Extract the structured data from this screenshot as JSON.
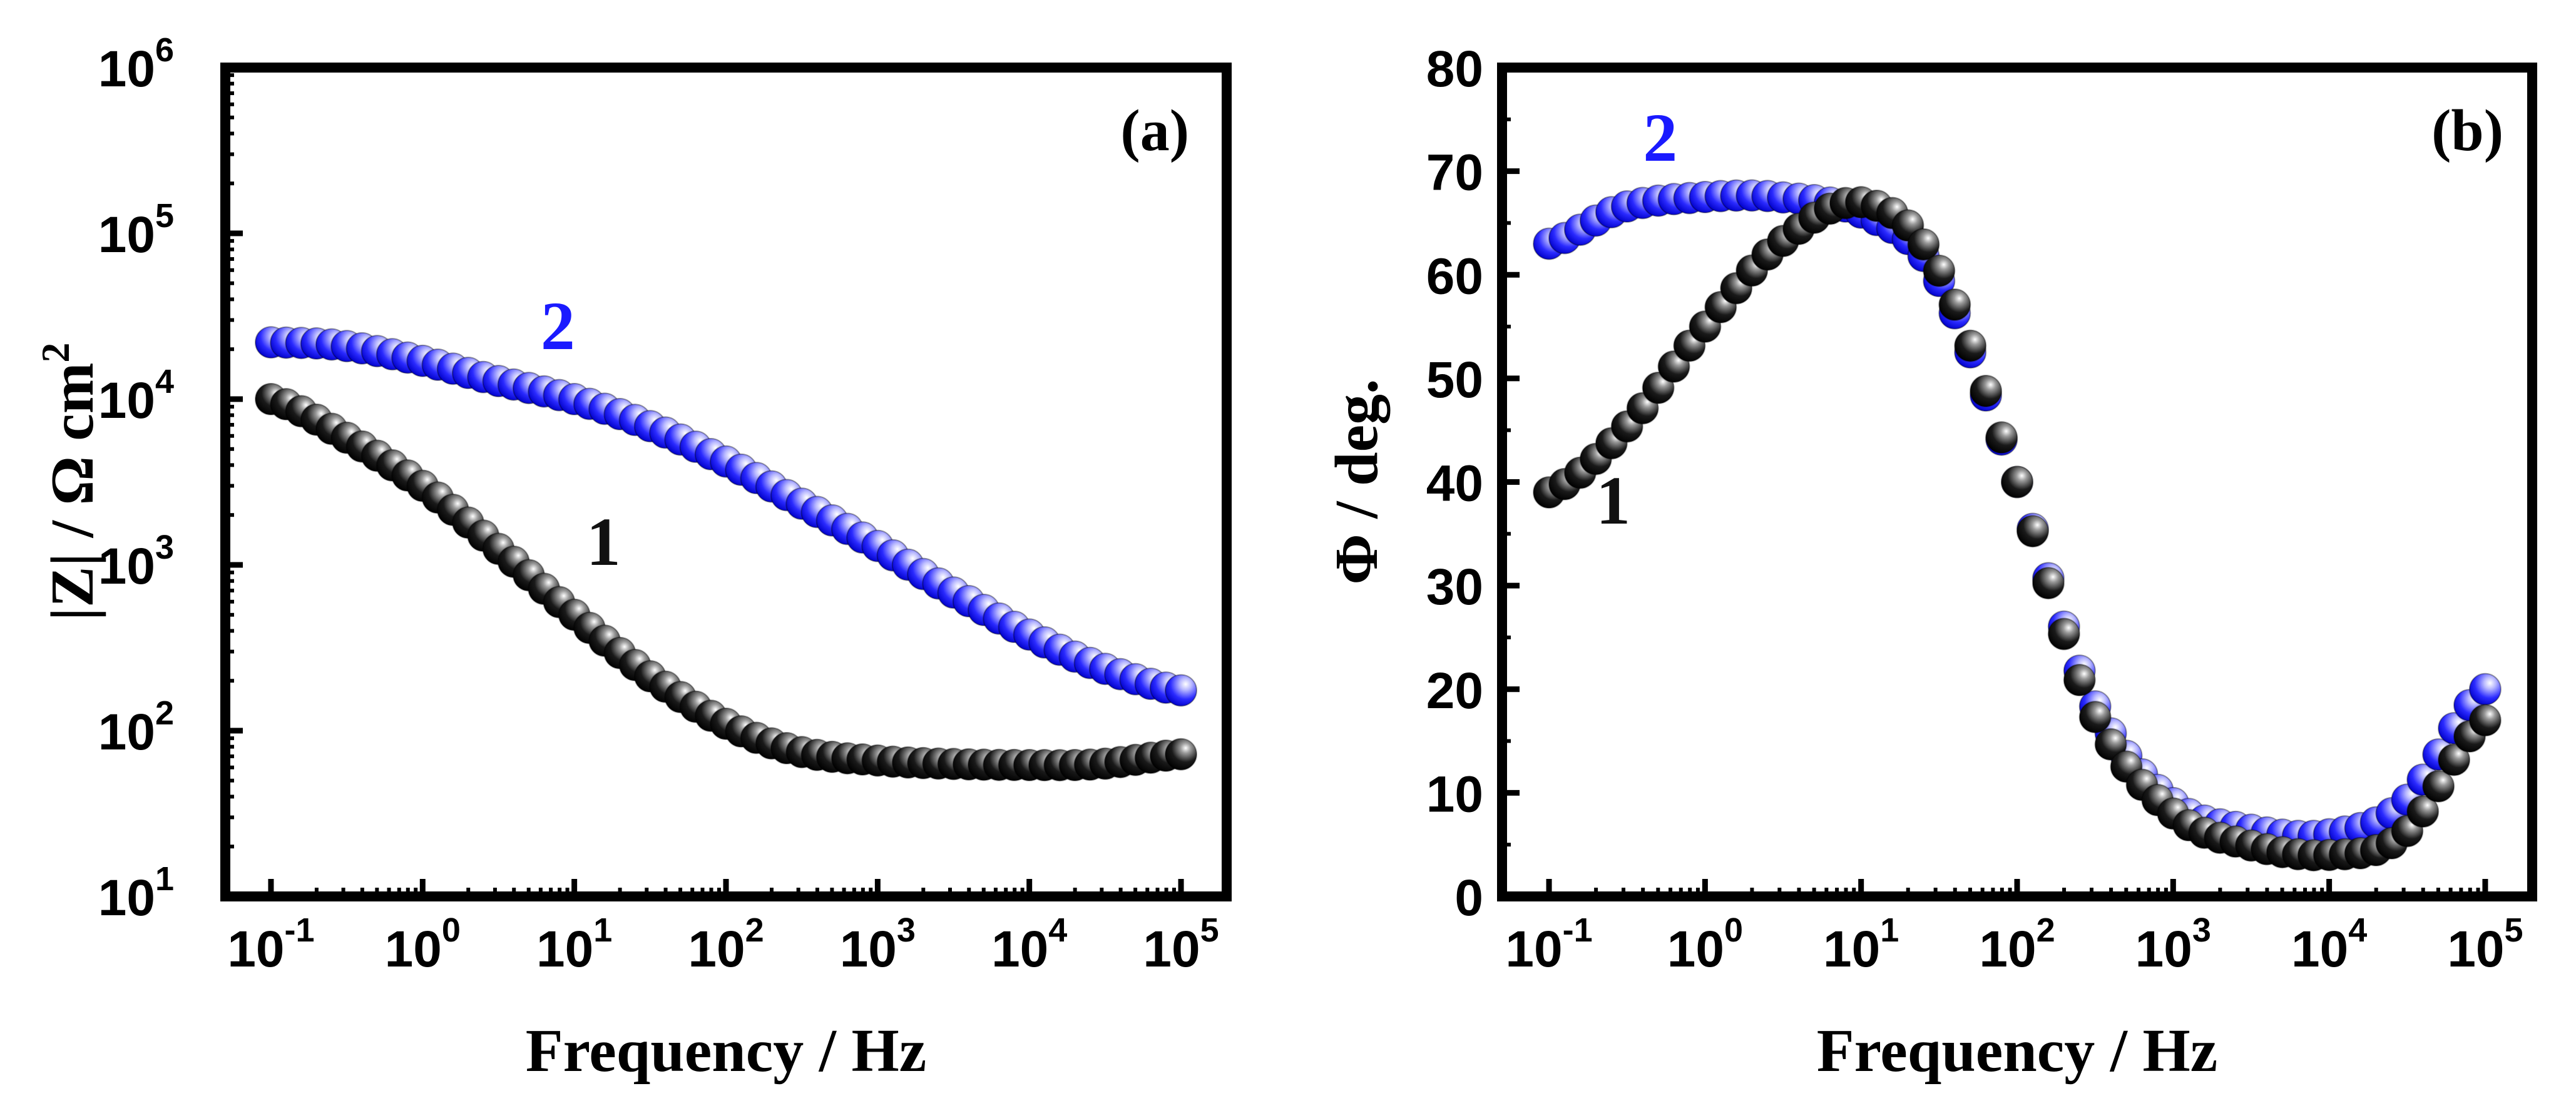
{
  "colors": {
    "series1": "#111111",
    "series2": "#1a1aff",
    "axis": "#000000"
  },
  "chart_data": [
    {
      "type": "scatter",
      "panel_label": "(a)",
      "xlabel": "Frequency / Hz",
      "ylabel": "|Z| / Ω cm",
      "ylabel_sup": "2",
      "xscale": "log",
      "yscale": "log",
      "xlim": [
        0.05,
        200000
      ],
      "ylim": [
        10,
        1000000
      ],
      "x_ticks": [
        {
          "base": "10",
          "exp": "-1"
        },
        {
          "base": "10",
          "exp": "0"
        },
        {
          "base": "10",
          "exp": "1"
        },
        {
          "base": "10",
          "exp": "2"
        },
        {
          "base": "10",
          "exp": "3"
        },
        {
          "base": "10",
          "exp": "4"
        },
        {
          "base": "10",
          "exp": "5"
        }
      ],
      "y_ticks": [
        {
          "base": "10",
          "exp": "1"
        },
        {
          "base": "10",
          "exp": "2"
        },
        {
          "base": "10",
          "exp": "3"
        },
        {
          "base": "10",
          "exp": "4"
        },
        {
          "base": "10",
          "exp": "5"
        },
        {
          "base": "10",
          "exp": "6"
        }
      ],
      "series": [
        {
          "name": "1",
          "label_x": 12,
          "label_y": 1000,
          "x": [
            0.1,
            0.3,
            1,
            3,
            10,
            30,
            100,
            300,
            1000,
            3000,
            10000,
            30000,
            100000
          ],
          "y": [
            10000,
            6000,
            3000,
            1300,
            500,
            220,
            110,
            75,
            66,
            63,
            62,
            63,
            72
          ]
        },
        {
          "name": "2",
          "label_x": 6,
          "label_y": 20000,
          "x": [
            0.1,
            0.3,
            1,
            3,
            10,
            30,
            100,
            300,
            1000,
            3000,
            10000,
            30000,
            100000
          ],
          "y": [
            22000,
            21000,
            17000,
            13000,
            10000,
            7000,
            4200,
            2400,
            1300,
            700,
            380,
            240,
            175
          ]
        }
      ]
    },
    {
      "type": "scatter",
      "panel_label": "(b)",
      "xlabel": "Frequency / Hz",
      "ylabel": "Φ / deg.",
      "xscale": "log",
      "yscale": "linear",
      "xlim": [
        0.05,
        200000
      ],
      "ylim": [
        0,
        80
      ],
      "x_ticks": [
        {
          "base": "10",
          "exp": "-1"
        },
        {
          "base": "10",
          "exp": "0"
        },
        {
          "base": "10",
          "exp": "1"
        },
        {
          "base": "10",
          "exp": "2"
        },
        {
          "base": "10",
          "exp": "3"
        },
        {
          "base": "10",
          "exp": "4"
        },
        {
          "base": "10",
          "exp": "5"
        }
      ],
      "y_ticks": [
        "0",
        "10",
        "20",
        "30",
        "40",
        "50",
        "60",
        "70",
        "80"
      ],
      "series": [
        {
          "name": "1",
          "label_x": 0.2,
          "label_y": 36,
          "x": [
            0.1,
            0.3,
            1,
            3,
            10,
            30,
            100,
            300,
            1000,
            3000,
            10000,
            30000,
            100000
          ],
          "y": [
            39,
            45,
            55,
            63,
            67,
            61,
            40,
            18,
            8,
            5,
            4,
            6,
            17
          ]
        },
        {
          "name": "2",
          "label_x": 0.4,
          "label_y": 71,
          "x": [
            0.1,
            0.3,
            1,
            3,
            10,
            30,
            100,
            300,
            1000,
            3000,
            10000,
            30000,
            100000
          ],
          "y": [
            63,
            66.5,
            67.5,
            67.5,
            66,
            60,
            40,
            19,
            9,
            6.5,
            6,
            9,
            20
          ]
        }
      ]
    }
  ]
}
